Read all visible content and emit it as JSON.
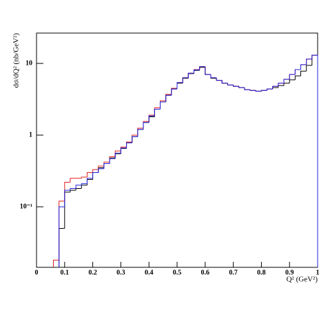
{
  "chart_data": {
    "type": "histogram",
    "x_label": "Q² (GeV²)",
    "y_label": "dσ/dQ² (nb/GeV²)",
    "bins": [
      0,
      0.02,
      0.04,
      0.06,
      0.08,
      0.1,
      0.12,
      0.14,
      0.16,
      0.18,
      0.2,
      0.22,
      0.24,
      0.26,
      0.28,
      0.3,
      0.32,
      0.34,
      0.36,
      0.38,
      0.4,
      0.42,
      0.44,
      0.46,
      0.48,
      0.5,
      0.52,
      0.54,
      0.56,
      0.58,
      0.6,
      0.62,
      0.64,
      0.66,
      0.68,
      0.7,
      0.72,
      0.74,
      0.76,
      0.78,
      0.8,
      0.82,
      0.84,
      0.86,
      0.88,
      0.9,
      0.92,
      0.94,
      0.96,
      0.98,
      1
    ],
    "series": [
      {
        "color": "#000000",
        "values": [
          null,
          null,
          null,
          null,
          0.05,
          0.16,
          0.17,
          0.18,
          0.2,
          0.24,
          0.3,
          0.35,
          0.4,
          0.48,
          0.55,
          0.65,
          0.78,
          0.95,
          1.2,
          1.5,
          1.8,
          2.3,
          2.9,
          3.6,
          4.4,
          5.3,
          6.2,
          7.2,
          8.0,
          8.8,
          7.0,
          6.2,
          5.8,
          5.3,
          5.0,
          4.8,
          4.6,
          4.3,
          4.2,
          4.1,
          4.2,
          4.4,
          4.6,
          4.9,
          5.3,
          5.9,
          6.7,
          7.8,
          9.4,
          13
        ]
      },
      {
        "color": "#e02020",
        "values": [
          null,
          null,
          null,
          0.018,
          0.12,
          0.22,
          0.25,
          0.25,
          0.26,
          0.3,
          0.33,
          0.37,
          0.42,
          0.5,
          0.6,
          0.68,
          0.8,
          1.0,
          1.25,
          1.55,
          1.9,
          2.4,
          3.0,
          3.7,
          4.5,
          5.4,
          6.3,
          7.3,
          8.2,
          9.0,
          7.0,
          6.3,
          5.8,
          5.3,
          5.0,
          4.8,
          4.6,
          4.3,
          4.2,
          4.1,
          4.2,
          4.4,
          4.8,
          5.3,
          6.0,
          7.0,
          8.2,
          9.6,
          11.5,
          13
        ]
      },
      {
        "color": "#2020e0",
        "values": [
          null,
          null,
          null,
          null,
          0.1,
          0.17,
          0.18,
          0.2,
          0.21,
          0.25,
          0.3,
          0.34,
          0.4,
          0.47,
          0.56,
          0.66,
          0.78,
          0.95,
          1.2,
          1.5,
          1.85,
          2.3,
          2.9,
          3.6,
          4.4,
          5.4,
          6.3,
          7.3,
          8.1,
          9.0,
          7.0,
          6.3,
          5.8,
          5.3,
          5.0,
          4.8,
          4.6,
          4.3,
          4.2,
          4.1,
          4.2,
          4.4,
          4.8,
          5.3,
          6.0,
          7.0,
          8.2,
          9.6,
          11.5,
          13
        ]
      }
    ],
    "xlim": [
      0,
      1
    ],
    "xticks": [
      0,
      0.1,
      0.2,
      0.3,
      0.4,
      0.5,
      0.6,
      0.7,
      0.8,
      0.9,
      1
    ],
    "ylim": [
      0.0143,
      26.5
    ],
    "yticks": [
      {
        "value": 0.1,
        "label": "10⁻¹"
      },
      1,
      10
    ],
    "log_y": true
  }
}
